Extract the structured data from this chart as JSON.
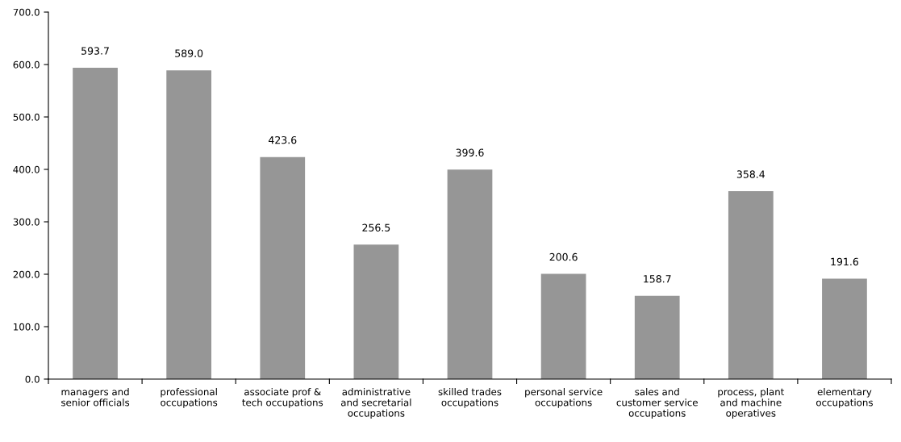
{
  "chart_data": {
    "type": "bar",
    "categories": [
      "managers and\nsenior officials",
      "professional\noccupations",
      "associate prof &\ntech occupations",
      "administrative\nand secretarial\noccupations",
      "skilled trades\noccupations",
      "personal service\noccupations",
      "sales and\ncustomer service\noccupations",
      "process, plant\nand machine\noperatives",
      "elementary\noccupations"
    ],
    "values": [
      593.7,
      589.0,
      423.6,
      256.5,
      399.6,
      200.6,
      158.7,
      358.4,
      191.6
    ],
    "value_labels": [
      "593.7",
      "589.0",
      "423.6",
      "256.5",
      "399.6",
      "200.6",
      "158.7",
      "358.4",
      "191.6"
    ],
    "color": "#969696",
    "ylim": [
      0,
      700
    ],
    "yticks": [
      {
        "value": 0,
        "label": "0.0"
      },
      {
        "value": 100,
        "label": "100.0"
      },
      {
        "value": 200,
        "label": "200.0"
      },
      {
        "value": 300,
        "label": "300.0"
      },
      {
        "value": 400,
        "label": "400.0"
      },
      {
        "value": 500,
        "label": "500.0"
      },
      {
        "value": 600,
        "label": "600.0"
      },
      {
        "value": 700,
        "label": "700.0"
      }
    ],
    "grid": false
  }
}
